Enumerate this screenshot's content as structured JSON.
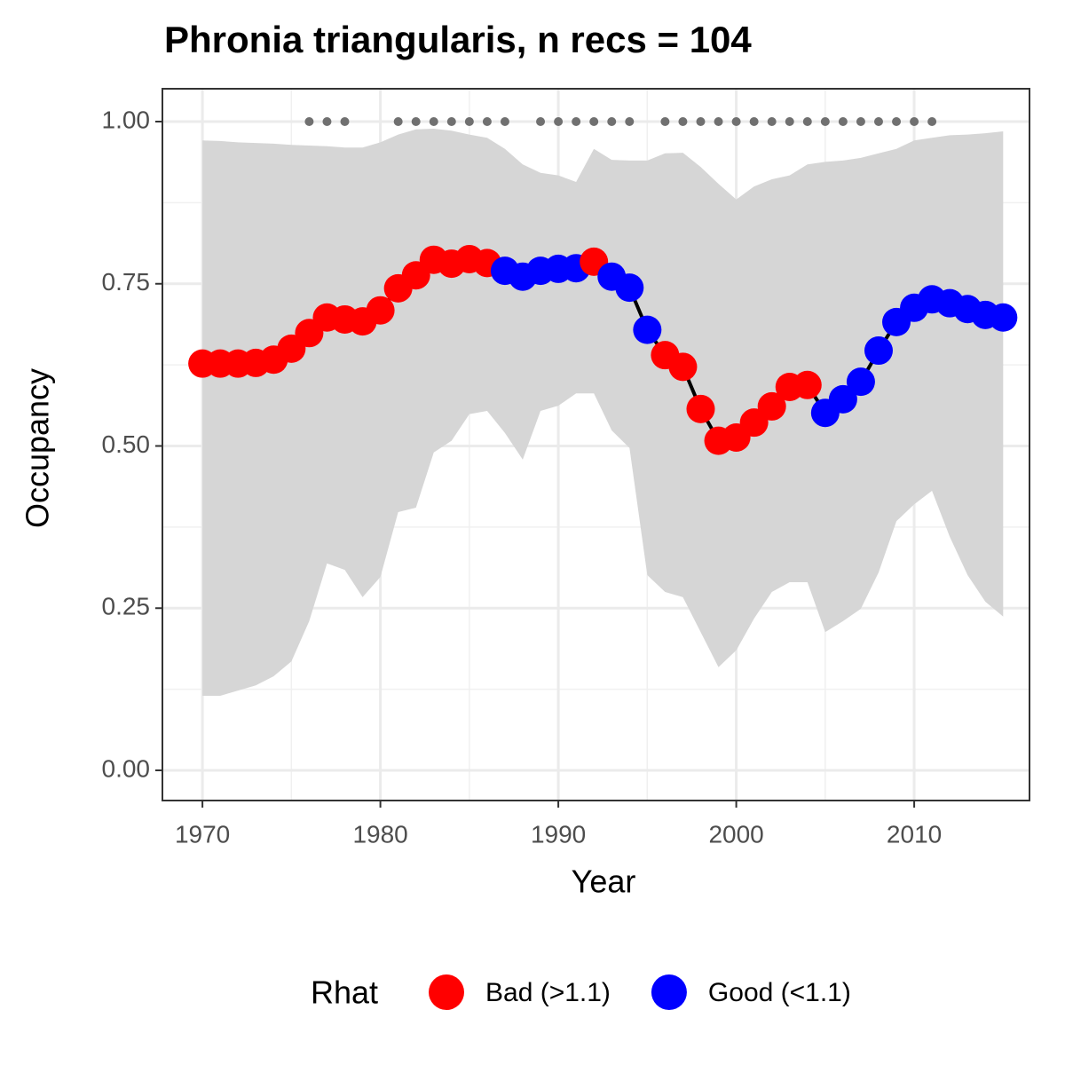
{
  "chart_data": {
    "type": "line",
    "title": "Phronia triangularis, n recs = 104",
    "x_label": "Year",
    "y_label": "Occupancy",
    "x": [
      1970,
      1971,
      1972,
      1973,
      1974,
      1975,
      1976,
      1977,
      1978,
      1979,
      1980,
      1981,
      1982,
      1983,
      1984,
      1985,
      1986,
      1987,
      1988,
      1989,
      1990,
      1991,
      1992,
      1993,
      1994,
      1995,
      1996,
      1997,
      1998,
      1999,
      2000,
      2001,
      2002,
      2003,
      2004,
      2005,
      2006,
      2007,
      2008,
      2009,
      2010,
      2011,
      2012,
      2013,
      2014,
      2015
    ],
    "line_color": "#000000",
    "series": [
      {
        "name": "Bad (>1.1)",
        "color": "#ff0000",
        "values": [
          0.627,
          0.627,
          0.627,
          0.628,
          0.633,
          0.65,
          0.674,
          0.698,
          0.695,
          0.692,
          0.709,
          0.743,
          0.763,
          0.787,
          0.781,
          0.788,
          0.782,
          null,
          null,
          null,
          null,
          null,
          0.784,
          null,
          null,
          null,
          0.64,
          0.622,
          0.557,
          0.508,
          0.513,
          0.536,
          0.561,
          0.591,
          0.594,
          null,
          null,
          null,
          null,
          null,
          null,
          null,
          null,
          null,
          null,
          null
        ]
      },
      {
        "name": "Good (<1.1)",
        "color": "#0000ff",
        "values": [
          null,
          null,
          null,
          null,
          null,
          null,
          null,
          null,
          null,
          null,
          null,
          null,
          null,
          null,
          null,
          null,
          null,
          0.77,
          0.761,
          0.77,
          0.773,
          0.774,
          null,
          0.761,
          0.744,
          0.679,
          null,
          null,
          null,
          null,
          null,
          null,
          null,
          null,
          null,
          0.551,
          0.572,
          0.599,
          0.647,
          0.691,
          0.713,
          0.726,
          0.72,
          0.711,
          0.702,
          0.698
        ]
      }
    ],
    "band": {
      "color": "#d6d6d6",
      "lower": [
        0.115,
        0.115,
        0.123,
        0.131,
        0.145,
        0.168,
        0.23,
        0.319,
        0.309,
        0.267,
        0.298,
        0.398,
        0.405,
        0.49,
        0.508,
        0.549,
        0.554,
        0.52,
        0.479,
        0.554,
        0.562,
        0.581,
        0.581,
        0.524,
        0.497,
        0.301,
        0.275,
        0.267,
        0.213,
        0.159,
        0.185,
        0.234,
        0.275,
        0.29,
        0.29,
        0.213,
        0.23,
        0.249,
        0.305,
        0.384,
        0.41,
        0.431,
        0.36,
        0.301,
        0.26,
        0.237
      ],
      "upper": [
        0.971,
        0.97,
        0.968,
        0.967,
        0.966,
        0.964,
        0.963,
        0.962,
        0.96,
        0.96,
        0.968,
        0.98,
        0.988,
        0.989,
        0.986,
        0.98,
        0.975,
        0.958,
        0.934,
        0.921,
        0.917,
        0.907,
        0.958,
        0.941,
        0.94,
        0.94,
        0.951,
        0.952,
        0.93,
        0.904,
        0.88,
        0.9,
        0.911,
        0.917,
        0.934,
        0.938,
        0.94,
        0.944,
        0.951,
        0.958,
        0.971,
        0.975,
        0.979,
        0.98,
        0.982,
        0.985
      ]
    },
    "records": {
      "color": "#707070",
      "x": [
        1976,
        1977,
        1978,
        1981,
        1982,
        1983,
        1984,
        1985,
        1986,
        1987,
        1989,
        1990,
        1991,
        1992,
        1993,
        1994,
        1996,
        1997,
        1998,
        1999,
        2000,
        2001,
        2002,
        2003,
        2004,
        2005,
        2006,
        2007,
        2008,
        2009,
        2010,
        2011
      ],
      "values": [
        1,
        1,
        1,
        1,
        1,
        1,
        1,
        1,
        1,
        1,
        1,
        1,
        1,
        1,
        1,
        1,
        1,
        1,
        1,
        1,
        1,
        1,
        1,
        1,
        1,
        1,
        1,
        1,
        1,
        1,
        1,
        1
      ]
    },
    "legend_title": "Rhat",
    "legend_position": "bottom",
    "xlim": [
      1967.75,
      2016.48
    ],
    "ylim": [
      -0.0465,
      1.0506
    ],
    "xticks": [
      1970,
      1980,
      1990,
      2000,
      2010
    ],
    "yticks": [
      {
        "value": 0,
        "label": "0.00"
      },
      {
        "value": 0.25,
        "label": "0.25"
      },
      {
        "value": 0.5,
        "label": "0.50"
      },
      {
        "value": 0.75,
        "label": "0.75"
      },
      {
        "value": 1,
        "label": "1.00"
      }
    ],
    "grid": true,
    "minor_grid": true
  }
}
